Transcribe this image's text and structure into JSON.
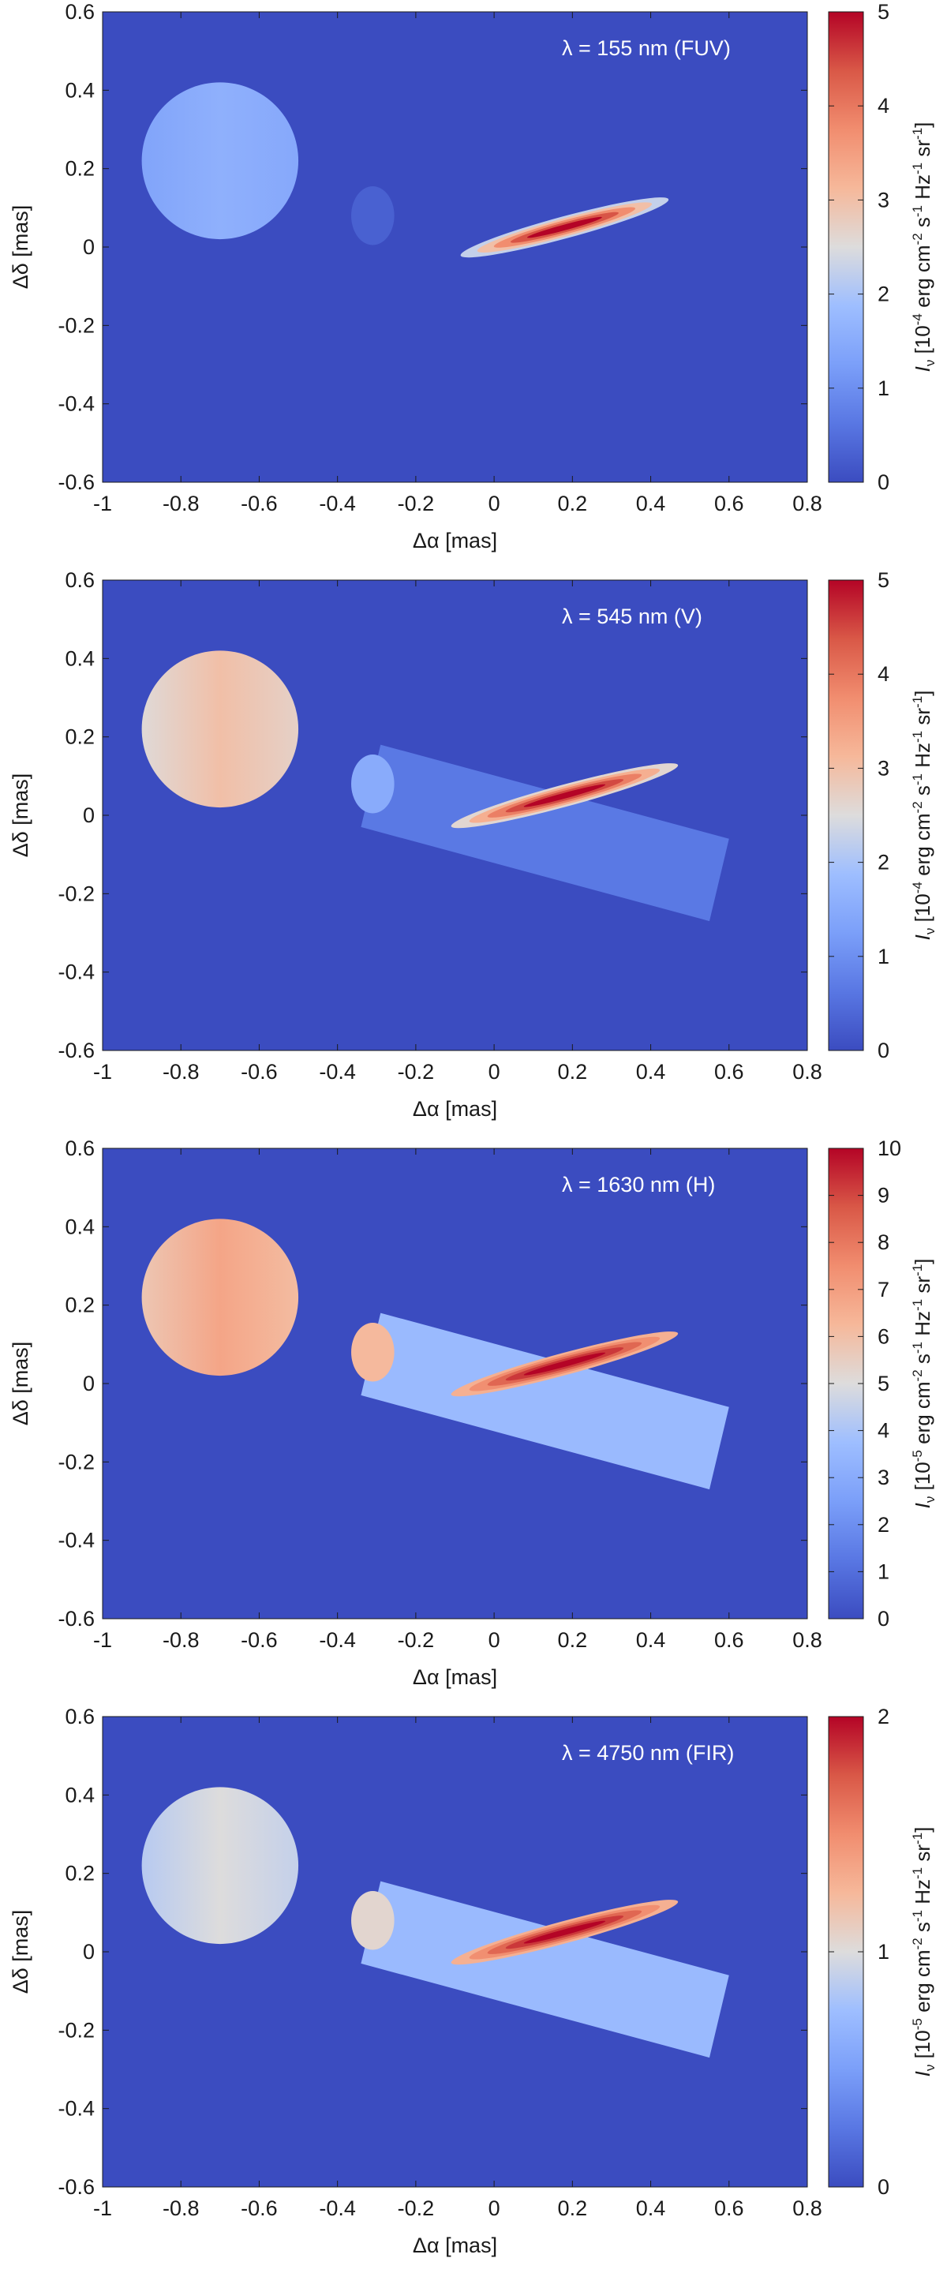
{
  "chart_data": [
    {
      "type": "heatmap",
      "annotation": "λ = 155 nm (FUV)",
      "xlabel": "Δα [mas]",
      "ylabel": "Δδ [mas]",
      "xlim": [
        -1,
        0.8
      ],
      "ylim": [
        -0.6,
        0.6
      ],
      "xticks": [
        "-1",
        "-0.8",
        "-0.6",
        "-0.4",
        "-0.2",
        "0",
        "0.2",
        "0.4",
        "0.6",
        "0.8"
      ],
      "yticks": [
        "0.6",
        "0.4",
        "0.2",
        "0",
        "-0.2",
        "-0.4",
        "-0.6"
      ],
      "colorbar": {
        "range": [
          0,
          5
        ],
        "ticks": [
          "5",
          "4",
          "3",
          "2",
          "1",
          "0"
        ],
        "label_base": "I",
        "label_sub": "ν",
        "label_parts": [
          "[10",
          "-4",
          " erg cm",
          "-2",
          " s",
          "-1",
          " Hz",
          "-1",
          " sr",
          "-1",
          "]"
        ]
      },
      "components": {
        "star": {
          "center": [
            -0.7,
            0.22
          ],
          "radius": 0.2,
          "value": 1.6
        },
        "small_disk": {
          "value": 0.6
        },
        "slab": {
          "value": 0
        },
        "streak": {
          "center": [
            0.18,
            0.05
          ],
          "length": 0.55,
          "peak": 5
        }
      }
    },
    {
      "type": "heatmap",
      "annotation": "λ = 545 nm (V)",
      "xlabel": "Δα [mas]",
      "ylabel": "Δδ [mas]",
      "xlim": [
        -1,
        0.8
      ],
      "ylim": [
        -0.6,
        0.6
      ],
      "xticks": [
        "-1",
        "-0.8",
        "-0.6",
        "-0.4",
        "-0.2",
        "0",
        "0.2",
        "0.4",
        "0.6",
        "0.8"
      ],
      "yticks": [
        "0.6",
        "0.4",
        "0.2",
        "0",
        "-0.2",
        "-0.4",
        "-0.6"
      ],
      "colorbar": {
        "range": [
          0,
          5
        ],
        "ticks": [
          "5",
          "4",
          "3",
          "2",
          "1",
          "0"
        ],
        "label_base": "I",
        "label_sub": "ν",
        "label_parts": [
          "[10",
          "-4",
          " erg cm",
          "-2",
          " s",
          "-1",
          " Hz",
          "-1",
          " sr",
          "-1",
          "]"
        ]
      },
      "components": {
        "star": {
          "center": [
            -0.7,
            0.22
          ],
          "radius": 0.2,
          "value": 3.0
        },
        "small_disk": {
          "value": 1.5
        },
        "slab": {
          "value": 0.65
        },
        "streak": {
          "center": [
            0.18,
            0.05
          ],
          "length": 0.6,
          "peak": 5
        }
      }
    },
    {
      "type": "heatmap",
      "annotation": "λ = 1630 nm (H)",
      "xlabel": "Δα [mas]",
      "ylabel": "Δδ [mas]",
      "xlim": [
        -1,
        0.8
      ],
      "ylim": [
        -0.6,
        0.6
      ],
      "xticks": [
        "-1",
        "-0.8",
        "-0.6",
        "-0.4",
        "-0.2",
        "0",
        "0.2",
        "0.4",
        "0.6",
        "0.8"
      ],
      "yticks": [
        "0.6",
        "0.4",
        "0.2",
        "0",
        "-0.2",
        "-0.4",
        "-0.6"
      ],
      "colorbar": {
        "range": [
          0,
          10
        ],
        "ticks": [
          "10",
          "9",
          "8",
          "7",
          "6",
          "5",
          "4",
          "3",
          "2",
          "1",
          "0"
        ],
        "label_base": "I",
        "label_sub": "ν",
        "label_parts": [
          "[10",
          "-5",
          " erg cm",
          "-2",
          " s",
          "-1",
          " Hz",
          "-1",
          " sr",
          "-1",
          "]"
        ]
      },
      "components": {
        "star": {
          "center": [
            -0.7,
            0.22
          ],
          "radius": 0.2,
          "value": 6.8
        },
        "small_disk": {
          "value": 6.2
        },
        "slab": {
          "value": 3.6
        },
        "streak": {
          "center": [
            0.18,
            0.05
          ],
          "length": 0.6,
          "peak": 10
        }
      }
    },
    {
      "type": "heatmap",
      "annotation": "λ = 4750 nm (FIR)",
      "xlabel": "Δα [mas]",
      "ylabel": "Δδ [mas]",
      "xlim": [
        -1,
        0.8
      ],
      "ylim": [
        -0.6,
        0.6
      ],
      "xticks": [
        "-1",
        "-0.8",
        "-0.6",
        "-0.4",
        "-0.2",
        "0",
        "0.2",
        "0.4",
        "0.6",
        "0.8"
      ],
      "yticks": [
        "0.6",
        "0.4",
        "0.2",
        "0",
        "-0.2",
        "-0.4",
        "-0.6"
      ],
      "colorbar": {
        "range": [
          0,
          2
        ],
        "ticks": [
          "2",
          "1",
          "0"
        ],
        "label_base": "I",
        "label_sub": "ν",
        "label_parts": [
          "[10",
          "-5",
          " erg cm",
          "-2",
          " s",
          "-1",
          " Hz",
          "-1",
          " sr",
          "-1",
          "]"
        ]
      },
      "components": {
        "star": {
          "center": [
            -0.7,
            0.22
          ],
          "radius": 0.2,
          "value": 1.0
        },
        "small_disk": {
          "value": 1.05
        },
        "slab": {
          "value": 0.72
        },
        "streak": {
          "center": [
            0.18,
            0.05
          ],
          "length": 0.6,
          "peak": 2
        }
      }
    }
  ]
}
